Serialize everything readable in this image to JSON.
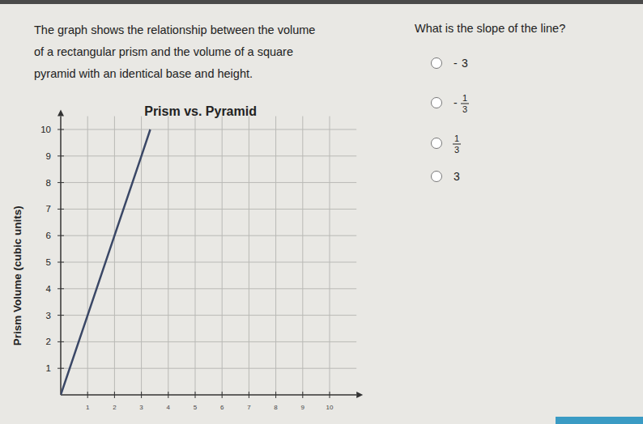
{
  "page": {
    "prompt_lines": [
      "The graph shows the relationship between the volume",
      "of a rectangular prism and the volume of a square",
      "pyramid with an identical base and height."
    ],
    "question": "What is the slope of the line?",
    "options": [
      {
        "sign": "-",
        "text": "3"
      },
      {
        "sign": "-",
        "numerator": "1",
        "denominator": "3"
      },
      {
        "numerator": "1",
        "denominator": "3"
      },
      {
        "text": "3"
      }
    ]
  },
  "chart_data": {
    "type": "line",
    "title": "Prism vs. Pyramid",
    "y_label": "Prism Volume (cubic units)",
    "x": [
      0,
      1,
      2,
      3,
      3.33
    ],
    "values": [
      0,
      3,
      6,
      9,
      10
    ],
    "color": "#3a4766",
    "xlim": [
      0,
      11
    ],
    "ylim": [
      0,
      10.5
    ],
    "xticks": [
      1,
      2,
      3,
      4,
      5,
      6,
      7,
      8,
      9,
      10
    ],
    "yticks": [
      1,
      2,
      3,
      4,
      5,
      6,
      7,
      8,
      9,
      10
    ],
    "grid": true
  }
}
